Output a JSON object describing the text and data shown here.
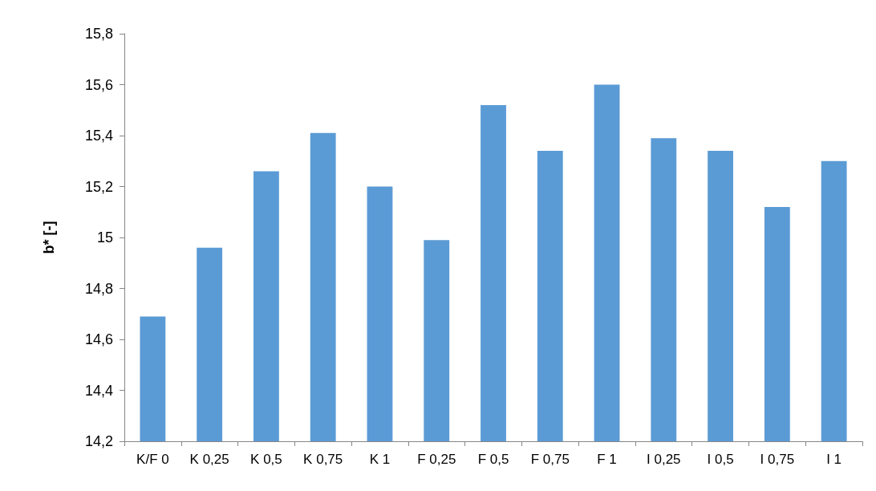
{
  "chart_data": {
    "type": "bar",
    "ylabel": "b* [-]",
    "categories": [
      "K/F 0",
      "K 0,25",
      "K 0,5",
      "K 0,75",
      "K 1",
      "F 0,25",
      "F 0,5",
      "F 0,75",
      "F 1",
      "I 0,25",
      "I 0,5",
      "I 0,75",
      "I 1"
    ],
    "values": [
      14.69,
      14.96,
      15.26,
      15.41,
      15.2,
      14.99,
      15.52,
      15.34,
      15.6,
      15.39,
      15.34,
      15.12,
      15.3
    ],
    "color": "#5b9bd5",
    "ylim": [
      14.2,
      15.8
    ],
    "yticks": [
      {
        "value": 14.2,
        "label": "14,2"
      },
      {
        "value": 14.4,
        "label": "14,4"
      },
      {
        "value": 14.6,
        "label": "14,6"
      },
      {
        "value": 14.8,
        "label": "14,8"
      },
      {
        "value": 15,
        "label": "15"
      },
      {
        "value": 15.2,
        "label": "15,2"
      },
      {
        "value": 15.4,
        "label": "15,4"
      },
      {
        "value": 15.6,
        "label": "15,6"
      },
      {
        "value": 15.8,
        "label": "15,8"
      }
    ],
    "grid": false
  }
}
